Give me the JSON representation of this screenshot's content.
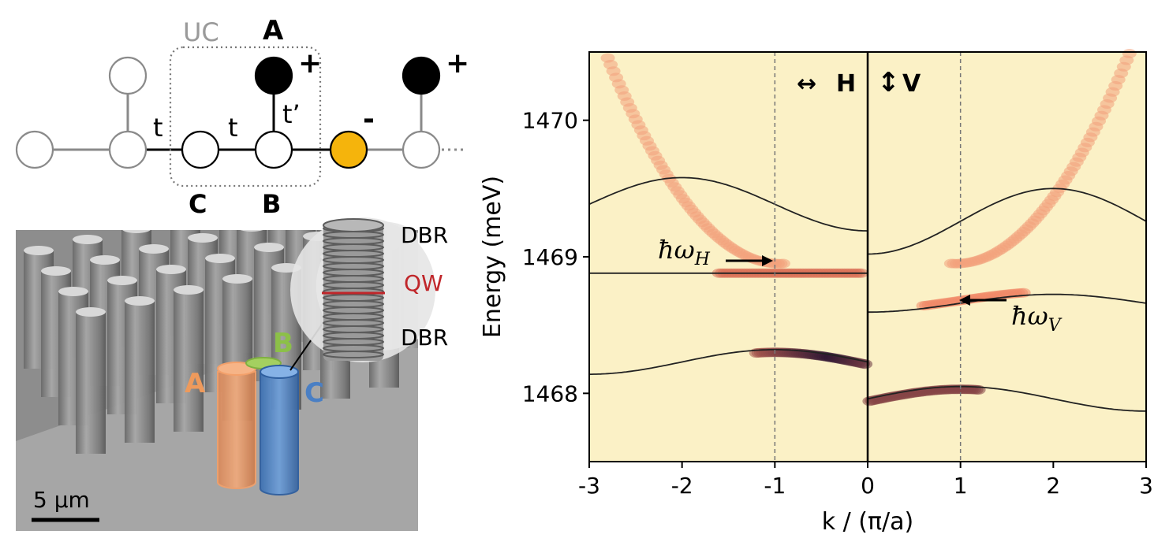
{
  "lattice": {
    "uc_label": "UC",
    "site_labels": {
      "a": "A",
      "b": "B",
      "c": "C"
    },
    "hopping": {
      "t": "t",
      "t_prime": "t’"
    },
    "signs": {
      "plus": "+",
      "minus": "-"
    },
    "colors": {
      "site_a": "#000000",
      "site_open": "#ffffff",
      "site_defect": "#f5b40c",
      "bond_uc": "#000000",
      "bond_other": "#8a8a8a"
    }
  },
  "micrograph": {
    "labels": {
      "a": "A",
      "b": "B",
      "c": "C"
    },
    "layers": {
      "top": "DBR",
      "middle": "QW",
      "bottom": "DBR"
    },
    "scale_bar": "5 µm",
    "colors": {
      "a": "#ee9a5c",
      "b": "#8cc048",
      "c": "#4a7fc4",
      "qw": "#c0262a",
      "bg": "#8b8b8b"
    }
  },
  "chart_data": {
    "type": "heatmap",
    "xlabel": "k / (π/a)",
    "ylabel": "Energy (meV)",
    "xlim": [
      -3,
      3
    ],
    "ylim": [
      1467.5,
      1470.5
    ],
    "xticks": [
      "-3",
      "-2",
      "-1",
      "0",
      "1",
      "2",
      "3"
    ],
    "yticks": [
      "1468",
      "1469",
      "1470"
    ],
    "dashed_lines_x": [
      -1,
      1
    ],
    "panels": [
      {
        "side": "left",
        "polarization": "H",
        "polarization_symbol": "↔",
        "annotation": "ħω",
        "annotation_sub": "H",
        "annotation_arrow_at": {
          "k": -1,
          "energy": 1468.96
        },
        "model_bands": [
          {
            "shape": "cos",
            "mean": 1469.385,
            "amplitude": 0.195,
            "period": 4,
            "max_at": -2
          },
          {
            "shape": "flat",
            "energy": 1468.88
          },
          {
            "shape": "cos",
            "mean": 1468.23,
            "amplitude": 0.09,
            "period": 4,
            "max_at": -1
          }
        ]
      },
      {
        "side": "right",
        "polarization": "V",
        "polarization_symbol": "↕",
        "annotation": "ħω",
        "annotation_sub": "V",
        "annotation_arrow_at": {
          "k": 1,
          "energy": 1468.7
        },
        "model_bands": [
          {
            "shape": "cos",
            "mean": 1469.26,
            "amplitude": 0.24,
            "period": 4,
            "max_at": 2
          },
          {
            "shape": "cos",
            "mean": 1468.66,
            "amplitude": 0.065,
            "period": 4,
            "max_at": 2
          },
          {
            "shape": "cos",
            "mean": 1467.96,
            "amplitude": 0.09,
            "period": 4,
            "max_at": 1
          }
        ]
      }
    ],
    "colormap": {
      "low": "#fbf1c6",
      "mid": "#f07d5c",
      "high": "#1a0a2e"
    }
  }
}
